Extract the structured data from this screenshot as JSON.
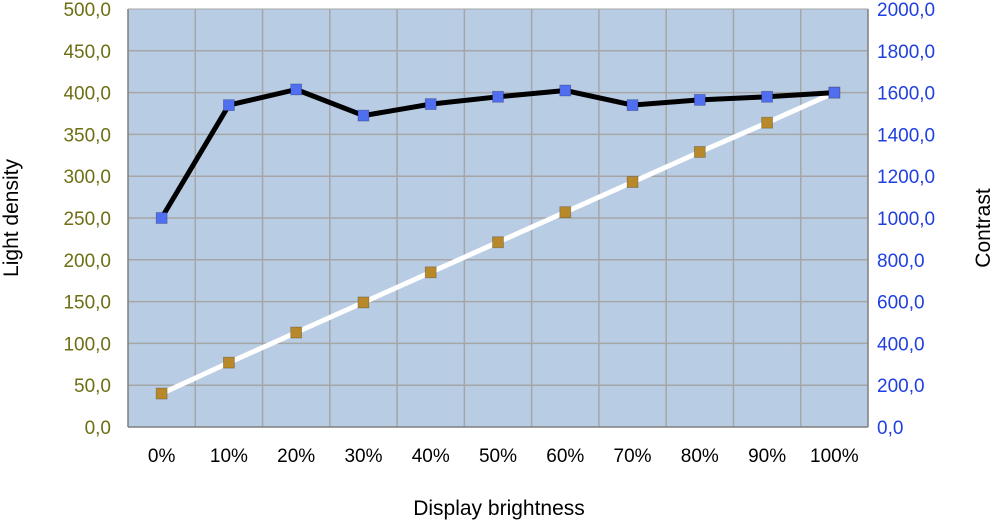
{
  "chart_data": {
    "type": "line",
    "title": "",
    "xlabel": "Display brightness",
    "ylabel": "Light density",
    "y2label": "Contrast",
    "categories": [
      "0%",
      "10%",
      "20%",
      "30%",
      "40%",
      "50%",
      "60%",
      "70%",
      "80%",
      "90%",
      "100%"
    ],
    "ylim": [
      0,
      500
    ],
    "y2lim": [
      0,
      2000
    ],
    "yticks": [
      "0,0",
      "50,0",
      "100,0",
      "150,0",
      "200,0",
      "250,0",
      "300,0",
      "350,0",
      "400,0",
      "450,0",
      "500,0"
    ],
    "y2ticks": [
      "0,0",
      "200,0",
      "400,0",
      "600,0",
      "800,0",
      "1000,0",
      "1200,0",
      "1400,0",
      "1600,0",
      "1800,0",
      "2000,0"
    ],
    "grid": true,
    "legend": "none",
    "series": [
      {
        "axis": "right",
        "values": [
          1000,
          1540,
          1615,
          1490,
          1545,
          1580,
          1610,
          1540,
          1565,
          1580,
          1600
        ],
        "line_color": "#000000",
        "marker_color": "#4f6ef0"
      },
      {
        "axis": "left",
        "values": [
          40,
          77,
          113,
          149,
          185,
          221,
          257,
          293,
          329,
          364,
          400
        ],
        "line_color": "#ffffff",
        "marker_color": "#b8892a"
      }
    ],
    "colors": {
      "plot_background": "#b8cce4",
      "grid": "#a6a6a6",
      "left_tick_color": "#6e6e14",
      "right_tick_color": "#1f3fe0"
    }
  }
}
